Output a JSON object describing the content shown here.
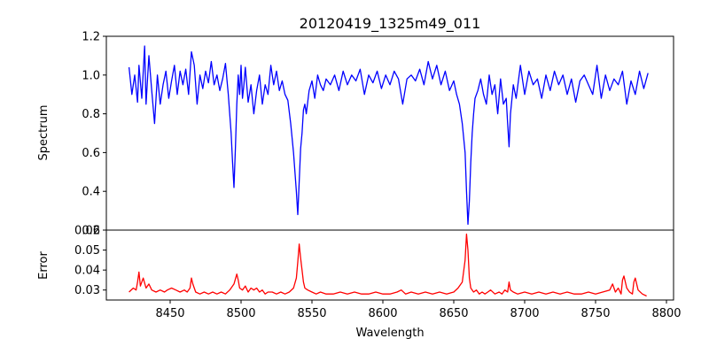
{
  "chart_data": [
    {
      "type": "line",
      "title": "20120419_1325m49_011",
      "xlabel": "",
      "ylabel": "Spectrum",
      "xlim": [
        8405,
        8805
      ],
      "ylim": [
        0.2,
        1.2
      ],
      "y_ticks": [
        0.2,
        0.4,
        0.6,
        0.8,
        1.0,
        1.2
      ],
      "y_tick_labels": [
        "0.2",
        "0.4",
        "0.6",
        "0.8",
        "1.0",
        "1.2"
      ],
      "grid": false,
      "series": [
        {
          "color": "#0000ff",
          "x": [
            8421,
            8423,
            8425,
            8427,
            8428,
            8430,
            8432,
            8433,
            8435,
            8437,
            8439,
            8441,
            8443,
            8445,
            8447,
            8449,
            8451,
            8453,
            8455,
            8457,
            8459,
            8461,
            8463,
            8465,
            8467,
            8469,
            8471,
            8473,
            8475,
            8477,
            8479,
            8481,
            8483,
            8485,
            8487,
            8489,
            8491,
            8493,
            8494,
            8495,
            8496,
            8497,
            8498,
            8499,
            8500,
            8501,
            8502,
            8503,
            8505,
            8507,
            8509,
            8511,
            8513,
            8515,
            8517,
            8519,
            8521,
            8523,
            8525,
            8527,
            8529,
            8531,
            8533,
            8535,
            8537,
            8539,
            8540,
            8541,
            8542,
            8543,
            8544,
            8545,
            8546,
            8548,
            8550,
            8552,
            8554,
            8556,
            8558,
            8560,
            8563,
            8566,
            8569,
            8572,
            8575,
            8578,
            8581,
            8584,
            8587,
            8590,
            8593,
            8596,
            8599,
            8602,
            8605,
            8608,
            8611,
            8614,
            8617,
            8620,
            8623,
            8626,
            8629,
            8632,
            8635,
            8638,
            8641,
            8644,
            8647,
            8650,
            8652,
            8654,
            8656,
            8658,
            8659,
            8660,
            8661,
            8662,
            8663,
            8664,
            8665,
            8667,
            8669,
            8671,
            8673,
            8675,
            8677,
            8679,
            8681,
            8683,
            8685,
            8687,
            8688,
            8689,
            8690,
            8692,
            8694,
            8697,
            8700,
            8703,
            8706,
            8709,
            8712,
            8715,
            8718,
            8721,
            8724,
            8727,
            8730,
            8733,
            8736,
            8739,
            8742,
            8745,
            8748,
            8751,
            8754,
            8757,
            8760,
            8763,
            8766,
            8769,
            8772,
            8775,
            8778,
            8781,
            8784,
            8787
          ],
          "y": [
            1.04,
            0.9,
            1.0,
            0.86,
            1.05,
            0.88,
            1.15,
            0.85,
            1.1,
            0.92,
            0.75,
            1.0,
            0.85,
            0.95,
            1.02,
            0.88,
            0.97,
            1.05,
            0.9,
            1.02,
            0.95,
            1.03,
            0.9,
            1.12,
            1.05,
            0.85,
            1.0,
            0.93,
            1.02,
            0.96,
            1.07,
            0.95,
            1.0,
            0.92,
            0.98,
            1.06,
            0.9,
            0.7,
            0.55,
            0.42,
            0.62,
            0.85,
            1.0,
            0.9,
            1.05,
            0.88,
            0.95,
            1.04,
            0.86,
            0.95,
            0.8,
            0.92,
            1.0,
            0.85,
            0.95,
            0.9,
            1.05,
            0.95,
            1.02,
            0.92,
            0.97,
            0.9,
            0.87,
            0.75,
            0.6,
            0.4,
            0.28,
            0.45,
            0.62,
            0.7,
            0.82,
            0.85,
            0.8,
            0.92,
            0.97,
            0.88,
            1.0,
            0.95,
            0.92,
            0.98,
            0.95,
            1.0,
            0.92,
            1.02,
            0.95,
            1.0,
            0.97,
            1.03,
            0.9,
            1.0,
            0.96,
            1.02,
            0.93,
            1.0,
            0.95,
            1.02,
            0.98,
            0.85,
            0.98,
            1.0,
            0.97,
            1.03,
            0.95,
            1.07,
            0.98,
            1.05,
            0.95,
            1.02,
            0.92,
            0.97,
            0.9,
            0.85,
            0.75,
            0.6,
            0.4,
            0.23,
            0.35,
            0.55,
            0.7,
            0.8,
            0.88,
            0.92,
            0.98,
            0.9,
            0.85,
            1.0,
            0.9,
            0.95,
            0.8,
            0.98,
            0.85,
            0.88,
            0.75,
            0.63,
            0.8,
            0.95,
            0.88,
            1.05,
            0.9,
            1.02,
            0.95,
            0.98,
            0.88,
            1.0,
            0.92,
            1.02,
            0.95,
            1.0,
            0.9,
            0.98,
            0.86,
            0.97,
            1.0,
            0.95,
            0.9,
            1.05,
            0.88,
            1.0,
            0.92,
            0.98,
            0.95,
            1.02,
            0.85,
            0.97,
            0.9,
            1.02,
            0.93,
            1.01
          ]
        }
      ]
    },
    {
      "type": "line",
      "title": "",
      "xlabel": "Wavelength",
      "ylabel": "Error",
      "xlim": [
        8405,
        8805
      ],
      "ylim": [
        0.025,
        0.06
      ],
      "x_ticks": [
        8450,
        8500,
        8550,
        8600,
        8650,
        8700,
        8750,
        8800
      ],
      "x_tick_labels": [
        "8450",
        "8500",
        "8550",
        "8600",
        "8650",
        "8700",
        "8750",
        "8800"
      ],
      "y_ticks": [
        0.03,
        0.04,
        0.05,
        0.06
      ],
      "y_tick_labels": [
        "0.03",
        "0.04",
        "0.05",
        "0.06"
      ],
      "grid": false,
      "series": [
        {
          "color": "#ff0000",
          "x": [
            8421,
            8424,
            8426,
            8427,
            8428,
            8429,
            8431,
            8433,
            8435,
            8437,
            8440,
            8443,
            8446,
            8448,
            8451,
            8454,
            8457,
            8460,
            8462,
            8464,
            8465,
            8466,
            8468,
            8471,
            8474,
            8477,
            8480,
            8483,
            8486,
            8489,
            8492,
            8495,
            8497,
            8498,
            8499,
            8501,
            8503,
            8505,
            8507,
            8509,
            8511,
            8513,
            8515,
            8517,
            8519,
            8522,
            8525,
            8528,
            8531,
            8534,
            8537,
            8539,
            8540,
            8541,
            8542,
            8543,
            8544,
            8545,
            8547,
            8550,
            8553,
            8556,
            8560,
            8565,
            8570,
            8575,
            8580,
            8585,
            8590,
            8595,
            8600,
            8605,
            8610,
            8613,
            8616,
            8620,
            8625,
            8630,
            8635,
            8640,
            8645,
            8650,
            8653,
            8656,
            8658,
            8659,
            8660,
            8661,
            8662,
            8663,
            8664,
            8666,
            8668,
            8670,
            8672,
            8674,
            8676,
            8679,
            8682,
            8684,
            8686,
            8688,
            8689,
            8690,
            8692,
            8695,
            8700,
            8705,
            8710,
            8715,
            8720,
            8725,
            8730,
            8735,
            8740,
            8745,
            8750,
            8755,
            8760,
            8762,
            8764,
            8766,
            8768,
            8769,
            8770,
            8772,
            8774,
            8776,
            8777,
            8778,
            8780,
            8783,
            8786
          ],
          "y": [
            0.029,
            0.031,
            0.03,
            0.034,
            0.039,
            0.032,
            0.036,
            0.031,
            0.033,
            0.03,
            0.029,
            0.03,
            0.029,
            0.03,
            0.031,
            0.03,
            0.029,
            0.03,
            0.029,
            0.031,
            0.036,
            0.033,
            0.029,
            0.028,
            0.029,
            0.028,
            0.029,
            0.028,
            0.029,
            0.028,
            0.03,
            0.033,
            0.038,
            0.035,
            0.031,
            0.03,
            0.032,
            0.029,
            0.031,
            0.03,
            0.031,
            0.029,
            0.03,
            0.028,
            0.029,
            0.029,
            0.028,
            0.029,
            0.028,
            0.029,
            0.031,
            0.036,
            0.044,
            0.053,
            0.046,
            0.04,
            0.034,
            0.031,
            0.03,
            0.029,
            0.028,
            0.029,
            0.028,
            0.028,
            0.029,
            0.028,
            0.029,
            0.028,
            0.028,
            0.029,
            0.028,
            0.028,
            0.029,
            0.03,
            0.028,
            0.029,
            0.028,
            0.029,
            0.028,
            0.029,
            0.028,
            0.029,
            0.031,
            0.034,
            0.045,
            0.058,
            0.05,
            0.036,
            0.031,
            0.03,
            0.029,
            0.03,
            0.028,
            0.029,
            0.028,
            0.029,
            0.03,
            0.028,
            0.029,
            0.028,
            0.03,
            0.029,
            0.034,
            0.03,
            0.029,
            0.028,
            0.029,
            0.028,
            0.029,
            0.028,
            0.029,
            0.028,
            0.029,
            0.028,
            0.028,
            0.029,
            0.028,
            0.029,
            0.03,
            0.033,
            0.029,
            0.031,
            0.028,
            0.035,
            0.037,
            0.031,
            0.029,
            0.028,
            0.034,
            0.036,
            0.03,
            0.028,
            0.027
          ]
        }
      ]
    }
  ]
}
